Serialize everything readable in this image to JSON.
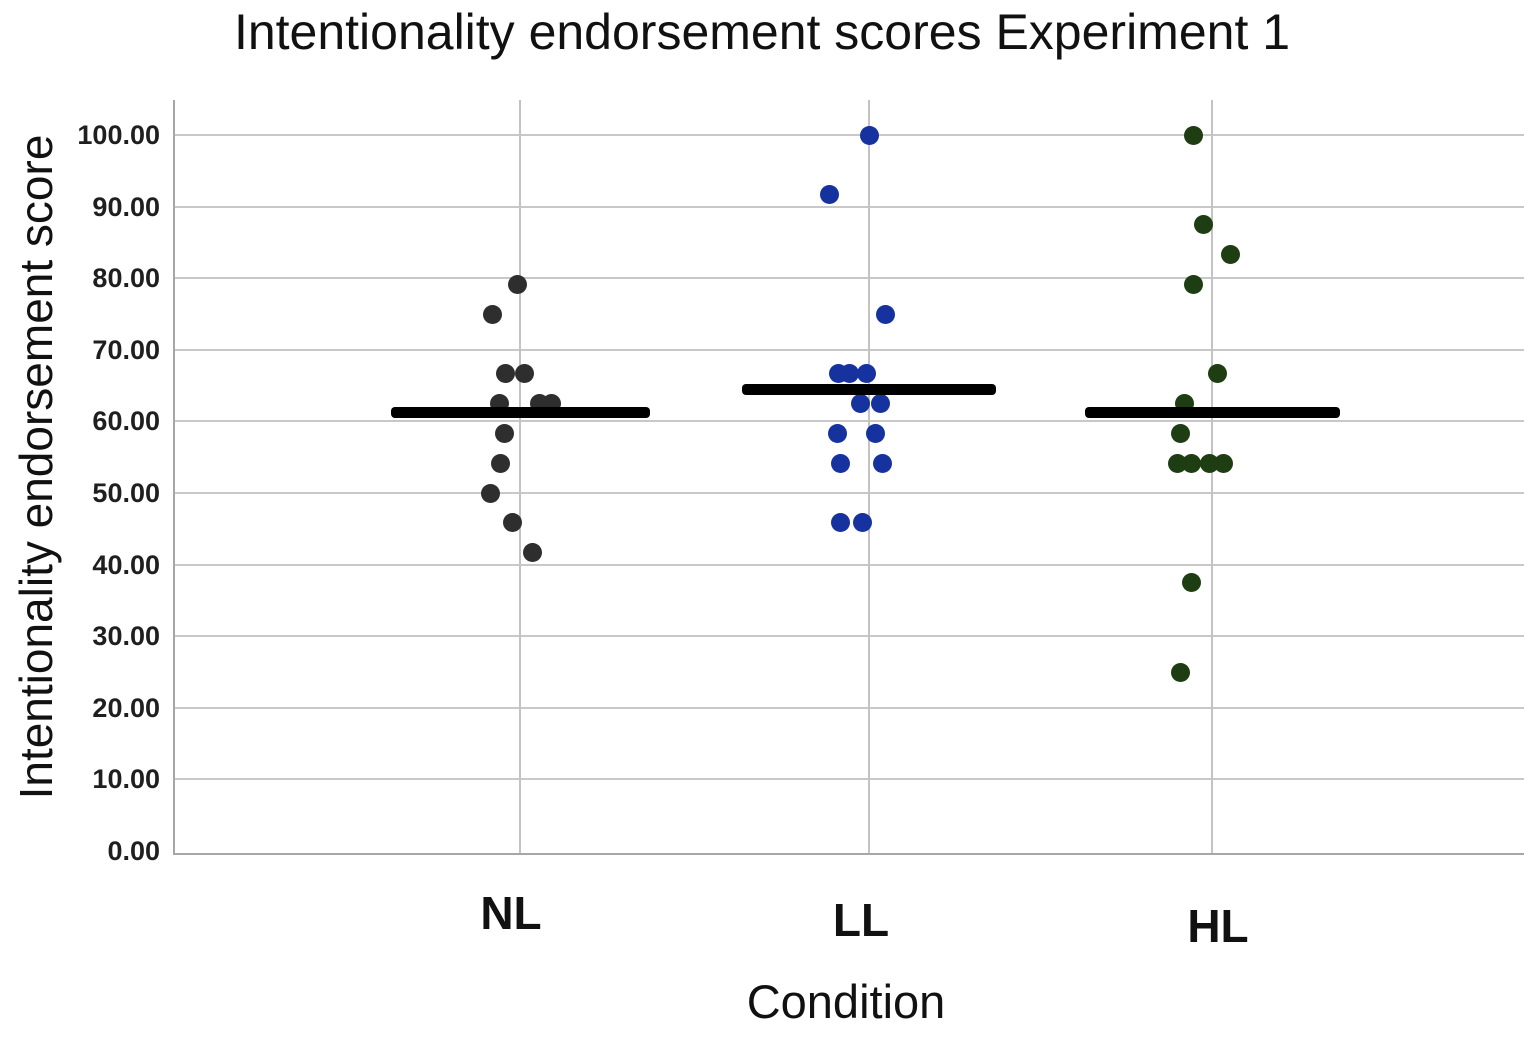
{
  "chart_data": {
    "type": "scatter",
    "subtype": "dot-strip-plot-with-mean-bars",
    "title": "Intentionality endorsement scores Experiment 1",
    "xlabel": "Condition",
    "ylabel": "Intentionality endorsement score",
    "ylim": [
      0,
      100
    ],
    "grid": "horizontal-gridlines-plus-category-centerlines",
    "legend": "none",
    "yticks": [
      {
        "value": 100,
        "label": "100.00"
      },
      {
        "value": 90,
        "label": "90.00"
      },
      {
        "value": 80,
        "label": "80.00"
      },
      {
        "value": 70,
        "label": "70.00"
      },
      {
        "value": 60,
        "label": "60.00"
      },
      {
        "value": 50,
        "label": "50.00"
      },
      {
        "value": 40,
        "label": "40.00"
      },
      {
        "value": 30,
        "label": "30.00"
      },
      {
        "value": 20,
        "label": "20.00"
      },
      {
        "value": 10,
        "label": "10.00"
      },
      {
        "value": 0,
        "label": "0.00"
      }
    ],
    "categories": [
      "NL",
      "LL",
      "HL"
    ],
    "series": [
      {
        "name": "NL",
        "color": "#2e2e2e",
        "n": 12,
        "mean_estimate": 61.2,
        "points": [
          {
            "v": 79.17,
            "dx": -3
          },
          {
            "v": 75.0,
            "dx": -28
          },
          {
            "v": 66.67,
            "dx": -15
          },
          {
            "v": 66.67,
            "dx": 4
          },
          {
            "v": 62.5,
            "dx": -21
          },
          {
            "v": 62.5,
            "dx": 19
          },
          {
            "v": 62.5,
            "dx": 31
          },
          {
            "v": 58.33,
            "dx": -16
          },
          {
            "v": 54.17,
            "dx": -20
          },
          {
            "v": 50.0,
            "dx": -30
          },
          {
            "v": 45.83,
            "dx": -8
          },
          {
            "v": 41.67,
            "dx": 12
          }
        ]
      },
      {
        "name": "LL",
        "color": "#16329f",
        "n": 14,
        "mean_estimate": 64.5,
        "points": [
          {
            "v": 100.0,
            "dx": 0
          },
          {
            "v": 91.67,
            "dx": -40
          },
          {
            "v": 75.0,
            "dx": 16
          },
          {
            "v": 66.67,
            "dx": -31
          },
          {
            "v": 66.67,
            "dx": -20
          },
          {
            "v": 66.67,
            "dx": -3
          },
          {
            "v": 62.5,
            "dx": -9
          },
          {
            "v": 62.5,
            "dx": 11
          },
          {
            "v": 58.33,
            "dx": -32
          },
          {
            "v": 58.33,
            "dx": 6
          },
          {
            "v": 54.17,
            "dx": -29
          },
          {
            "v": 54.17,
            "dx": 13
          },
          {
            "v": 45.83,
            "dx": -29
          },
          {
            "v": 45.83,
            "dx": -7
          }
        ]
      },
      {
        "name": "HL",
        "color": "#1e3d12",
        "n": 13,
        "mean_estimate": 61.3,
        "points": [
          {
            "v": 100.0,
            "dx": -19
          },
          {
            "v": 87.5,
            "dx": -9
          },
          {
            "v": 83.33,
            "dx": 18
          },
          {
            "v": 79.17,
            "dx": -19
          },
          {
            "v": 66.67,
            "dx": 5
          },
          {
            "v": 62.5,
            "dx": -28
          },
          {
            "v": 58.33,
            "dx": -32
          },
          {
            "v": 54.17,
            "dx": -35
          },
          {
            "v": 54.17,
            "dx": -21
          },
          {
            "v": 54.17,
            "dx": -3
          },
          {
            "v": 54.17,
            "dx": 11
          },
          {
            "v": 37.5,
            "dx": -21
          },
          {
            "v": 25.0,
            "dx": -32
          }
        ]
      }
    ],
    "mean_bar_color": "#000000"
  },
  "colors": {
    "background": "#ffffff",
    "gridline": "#c8c8c8",
    "axis_line": "#a6a6a6",
    "text": "#111111"
  }
}
